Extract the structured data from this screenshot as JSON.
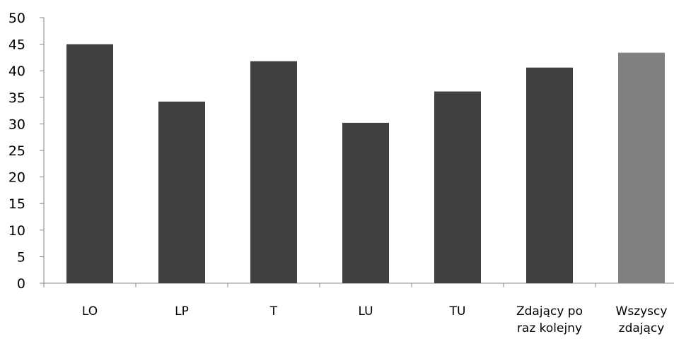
{
  "chart_data": {
    "type": "bar",
    "title": "",
    "xlabel": "",
    "ylabel": "",
    "ylim": [
      0,
      50
    ],
    "yticks": [
      0,
      5,
      10,
      15,
      20,
      25,
      30,
      35,
      40,
      45,
      50
    ],
    "grid": false,
    "legend": "none",
    "categories": [
      [
        "LO"
      ],
      [
        "LP"
      ],
      [
        "T"
      ],
      [
        "LU"
      ],
      [
        "TU"
      ],
      [
        "Zdający po",
        "raz kolejny"
      ],
      [
        "Wszyscy",
        "zdający"
      ]
    ],
    "values": [
      45,
      34.2,
      41.8,
      30.2,
      36.1,
      40.6,
      43.4
    ],
    "bar_colors": [
      "#404040",
      "#404040",
      "#404040",
      "#404040",
      "#404040",
      "#404040",
      "#808080"
    ]
  }
}
